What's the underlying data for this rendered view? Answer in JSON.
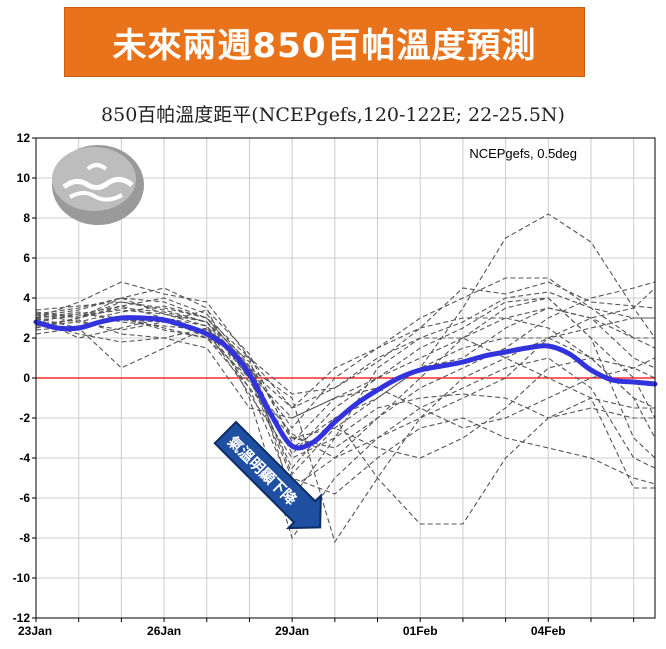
{
  "banner": {
    "title": "未來兩週850百帕溫度預測"
  },
  "chart_data": {
    "type": "line",
    "title": "850百帕溫度距平(NCEPgefs,120-122E; 22-25.5N)",
    "annotation": "NCEPgefs, 0.5deg",
    "arrow_label": "氣溫明顯下降",
    "colors": {
      "mean": "#3333dd",
      "members": "#555555",
      "zero": "#ff0000"
    },
    "xlim": [
      0,
      14.5
    ],
    "ylim": [
      -12,
      12
    ],
    "yticks": [
      12,
      10,
      8,
      6,
      4,
      2,
      0,
      -2,
      -4,
      -6,
      -8,
      -10,
      -12
    ],
    "xticks": [
      {
        "x": 0,
        "label": "23Jan"
      },
      {
        "x": 3,
        "label": "26Jan"
      },
      {
        "x": 6,
        "label": "29Jan"
      },
      {
        "x": 9,
        "label": "01Feb"
      },
      {
        "x": 12,
        "label": "04Feb"
      }
    ],
    "mean_series": {
      "x": [
        0,
        0.5,
        1,
        1.5,
        2,
        2.5,
        3,
        3.5,
        4,
        4.5,
        5,
        5.5,
        6,
        6.5,
        7,
        7.5,
        8,
        8.5,
        9,
        9.5,
        10,
        10.5,
        11,
        11.5,
        12,
        12.5,
        13,
        13.5,
        14,
        14.5
      ],
      "y": [
        2.8,
        2.5,
        2.5,
        2.8,
        3.0,
        3.0,
        2.9,
        2.6,
        2.2,
        1.5,
        0.2,
        -1.8,
        -3.4,
        -3.2,
        -2.2,
        -1.3,
        -0.6,
        0.0,
        0.4,
        0.6,
        0.8,
        1.1,
        1.3,
        1.5,
        1.6,
        1.2,
        0.4,
        -0.1,
        -0.2,
        -0.3
      ]
    },
    "members_x": [
      0,
      1,
      2,
      3,
      4,
      5,
      6,
      7,
      8,
      9,
      10,
      11,
      12,
      13,
      14,
      14.5
    ],
    "members": [
      [
        3.0,
        3.8,
        4.8,
        4.2,
        3.8,
        1.0,
        -0.8,
        -0.5,
        0.8,
        2.5,
        4.5,
        4.2,
        4.8,
        3.8,
        3.6,
        3.5
      ],
      [
        3.2,
        3.5,
        4.0,
        3.8,
        3.0,
        0.5,
        -2.5,
        0.0,
        1.5,
        3.0,
        4.0,
        5.0,
        5.0,
        3.5,
        2.0,
        2.0
      ],
      [
        2.5,
        3.0,
        3.5,
        3.3,
        2.8,
        0.0,
        -4.5,
        -2.0,
        -1.0,
        0.5,
        3.5,
        7.0,
        8.2,
        6.8,
        3.5,
        2.0
      ],
      [
        2.8,
        2.2,
        1.8,
        2.0,
        2.5,
        -0.5,
        -5.5,
        -4.0,
        -2.0,
        0.0,
        2.0,
        3.5,
        4.0,
        2.0,
        0.0,
        -2.0
      ],
      [
        3.0,
        2.5,
        0.5,
        1.5,
        2.5,
        0.2,
        -2.0,
        -1.0,
        0.0,
        1.0,
        2.0,
        3.0,
        3.5,
        3.0,
        2.0,
        1.5
      ],
      [
        2.6,
        2.8,
        3.3,
        3.6,
        3.0,
        1.0,
        -6.0,
        -3.0,
        -1.5,
        -1.0,
        -0.8,
        -1.0,
        -2.0,
        -1.5,
        -2.0,
        -2.0
      ],
      [
        2.5,
        3.0,
        4.0,
        4.5,
        3.5,
        -1.0,
        -8.0,
        -5.0,
        -3.0,
        -2.0,
        -1.0,
        0.0,
        2.0,
        3.0,
        3.5,
        4.5
      ],
      [
        3.4,
        3.6,
        3.8,
        3.5,
        3.0,
        0.5,
        -1.0,
        -8.2,
        -5.0,
        -2.0,
        0.0,
        1.0,
        2.0,
        1.0,
        -1.0,
        -3.0
      ],
      [
        3.0,
        2.0,
        2.5,
        3.0,
        2.0,
        -0.5,
        -3.0,
        -2.5,
        -3.5,
        -4.0,
        -3.0,
        -1.5,
        0.5,
        1.0,
        0.5,
        0.0
      ],
      [
        2.2,
        2.5,
        3.0,
        2.5,
        2.0,
        1.0,
        -1.5,
        0.5,
        1.5,
        2.5,
        3.0,
        3.0,
        2.5,
        1.0,
        -1.0,
        -1.5
      ],
      [
        2.8,
        3.2,
        3.6,
        3.0,
        2.6,
        0.0,
        -3.5,
        -2.0,
        -5.0,
        -7.3,
        -7.3,
        -4.0,
        -2.0,
        -1.0,
        -1.5,
        -1.5
      ],
      [
        3.0,
        3.3,
        2.8,
        2.6,
        2.4,
        -0.8,
        -4.0,
        -3.0,
        0.5,
        2.0,
        2.0,
        1.0,
        0.0,
        -1.0,
        -5.5,
        -5.5
      ],
      [
        2.7,
        2.9,
        2.2,
        2.0,
        1.5,
        -1.5,
        -2.0,
        -1.0,
        -0.5,
        0.5,
        1.5,
        2.0,
        2.0,
        2.5,
        3.0,
        3.0
      ],
      [
        3.1,
        3.4,
        4.0,
        3.2,
        2.8,
        0.8,
        -3.0,
        -3.5,
        -2.0,
        -0.5,
        0.5,
        1.5,
        3.0,
        4.0,
        4.5,
        4.8
      ],
      [
        2.9,
        3.1,
        3.4,
        3.2,
        2.6,
        0.3,
        -4.8,
        -2.5,
        -1.0,
        0.5,
        1.0,
        2.5,
        3.5,
        3.0,
        1.0,
        0.5
      ],
      [
        3.3,
        3.0,
        3.6,
        4.0,
        3.2,
        0.6,
        -3.8,
        -1.5,
        0.0,
        1.5,
        2.5,
        3.8,
        4.0,
        2.0,
        -3.0,
        -4.0
      ],
      [
        2.4,
        2.6,
        2.9,
        2.8,
        2.2,
        -0.2,
        -2.8,
        -4.0,
        -3.0,
        -1.5,
        -0.5,
        0.5,
        1.0,
        -0.5,
        -4.0,
        -4.5
      ],
      [
        3.0,
        3.2,
        3.0,
        2.4,
        2.0,
        0.0,
        -5.0,
        -5.8,
        -4.0,
        -2.5,
        -2.0,
        -3.0,
        -3.5,
        -4.0,
        -5.0,
        -5.3
      ],
      [
        2.6,
        3.0,
        3.8,
        3.4,
        2.8,
        0.4,
        -1.5,
        -0.5,
        1.0,
        2.0,
        2.8,
        4.0,
        4.3,
        3.5,
        3.0,
        3.0
      ],
      [
        3.2,
        2.8,
        2.4,
        2.8,
        3.4,
        1.2,
        -3.2,
        -1.0,
        -0.5,
        -1.5,
        -2.5,
        -2.0,
        -1.0,
        0.0,
        0.5,
        1.0
      ]
    ]
  }
}
